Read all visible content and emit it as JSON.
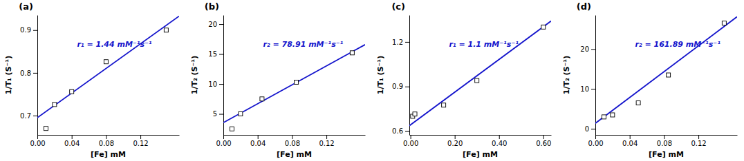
{
  "chart_data": [
    {
      "type": "scatter",
      "title": "(a)",
      "xlabel": "[Fe] mM",
      "ylabel": "1/T₁ (S⁻¹)",
      "annotation": "r₁ = 1.44 mM⁻¹s⁻¹",
      "xlim": [
        0.0,
        0.165
      ],
      "ylim": [
        0.655,
        0.935
      ],
      "xticks": [
        {
          "value": 0.0,
          "label": "0.00"
        },
        0.04,
        0.08,
        0.12
      ],
      "yticks": [
        0.7,
        0.8,
        0.9
      ],
      "grid": false,
      "series": [
        {
          "type": "scatter",
          "marker": "square",
          "color": "white",
          "x": [
            0.01,
            0.02,
            0.04,
            0.08,
            0.15
          ],
          "values": [
            0.67,
            0.726,
            0.756,
            0.826,
            0.9
          ]
        },
        {
          "type": "line",
          "line_style": "solid",
          "color": "#1414CC",
          "x": [
            0.0,
            0.165
          ],
          "values": [
            0.695,
            0.9326
          ]
        }
      ]
    },
    {
      "type": "scatter",
      "title": "(b)",
      "xlabel": "[Fe] mM",
      "ylabel": "1/T₂ (S⁻¹)",
      "annotation": "r₂ = 78.91 mM⁻¹s⁻¹",
      "xlim": [
        0.0,
        0.165
      ],
      "ylim": [
        1.5,
        21.5
      ],
      "xticks": [
        {
          "value": 0.0,
          "label": "0.00"
        },
        0.04,
        0.08,
        0.12
      ],
      "yticks": [
        5,
        10,
        15,
        20
      ],
      "grid": false,
      "series": [
        {
          "type": "scatter",
          "marker": "square",
          "color": "white",
          "x": [
            0.01,
            0.02,
            0.045,
            0.085,
            0.15
          ],
          "values": [
            2.5,
            5.0,
            7.5,
            10.3,
            15.2
          ]
        },
        {
          "type": "line",
          "line_style": "solid",
          "color": "#1414CC",
          "x": [
            0.0,
            0.165
          ],
          "values": [
            3.55,
            16.57015
          ]
        }
      ]
    },
    {
      "type": "scatter",
      "title": "(c)",
      "xlabel": "[Fe] mM",
      "ylabel": "1/T₁ (S⁻¹)",
      "annotation": "r₁ = 1.1 mM⁻¹s⁻¹",
      "xlim": [
        -0.005,
        0.635
      ],
      "ylim": [
        0.575,
        1.38
      ],
      "xticks": [
        {
          "value": 0.0,
          "label": "0.00"
        },
        {
          "value": 0.2,
          "label": "0.20"
        },
        {
          "value": 0.4,
          "label": "0.40"
        },
        {
          "value": 0.6,
          "label": "0.60"
        }
      ],
      "yticks": [
        0.6,
        0.9,
        1.2
      ],
      "grid": false,
      "series": [
        {
          "type": "scatter",
          "marker": "square",
          "color": "white",
          "x": [
            0.01,
            0.02,
            0.15,
            0.3,
            0.6
          ],
          "values": [
            0.7,
            0.715,
            0.775,
            0.94,
            1.3
          ]
        },
        {
          "type": "line",
          "line_style": "solid",
          "color": "#1414CC",
          "x": [
            -0.005,
            0.635
          ],
          "values": [
            0.6365,
            1.3405
          ]
        }
      ]
    },
    {
      "type": "scatter",
      "title": "(d)",
      "xlabel": "[Fe] mM",
      "ylabel": "1/T₂ (S⁻¹)",
      "annotation": "r₂ = 161.89 mM⁻¹s⁻¹",
      "xlim": [
        0.0,
        0.165
      ],
      "ylim": [
        -1.5,
        28.5
      ],
      "xticks": [
        {
          "value": 0.0,
          "label": "0.00"
        },
        0.04,
        0.08,
        0.12
      ],
      "yticks": [
        0,
        10,
        20
      ],
      "grid": false,
      "series": [
        {
          "type": "scatter",
          "marker": "square",
          "color": "white",
          "x": [
            0.01,
            0.02,
            0.05,
            0.085,
            0.15
          ],
          "values": [
            3.0,
            3.5,
            6.5,
            13.5,
            26.5
          ]
        },
        {
          "type": "line",
          "line_style": "solid",
          "color": "#1414CC",
          "x": [
            0.0,
            0.165
          ],
          "values": [
            1.4,
            28.11185
          ]
        }
      ]
    }
  ]
}
